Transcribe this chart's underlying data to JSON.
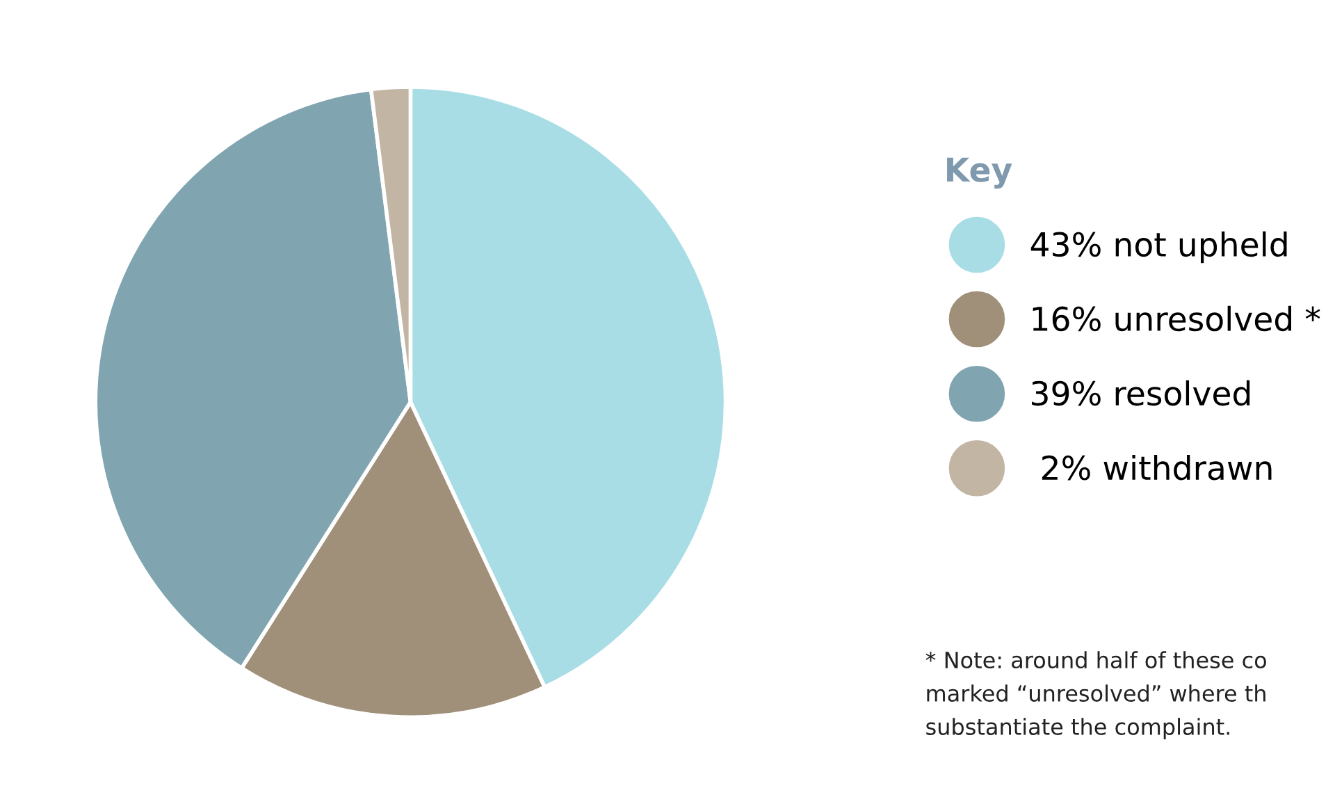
{
  "chart_data": {
    "type": "pie",
    "legend_title": "Key",
    "legend": "right",
    "categories": [
      "43% not upheld",
      "16% unresolved *",
      "39% resolved",
      " 2% withdrawn"
    ],
    "values": [
      43,
      16,
      39,
      2
    ],
    "colors": [
      "#a8dde6",
      "#a09079",
      "#80a5b0",
      "#c2b5a3"
    ],
    "annotations": [
      "* Note: around half of these co\nmarked “unresolved” where th\nsubstantiate the complaint."
    ]
  }
}
